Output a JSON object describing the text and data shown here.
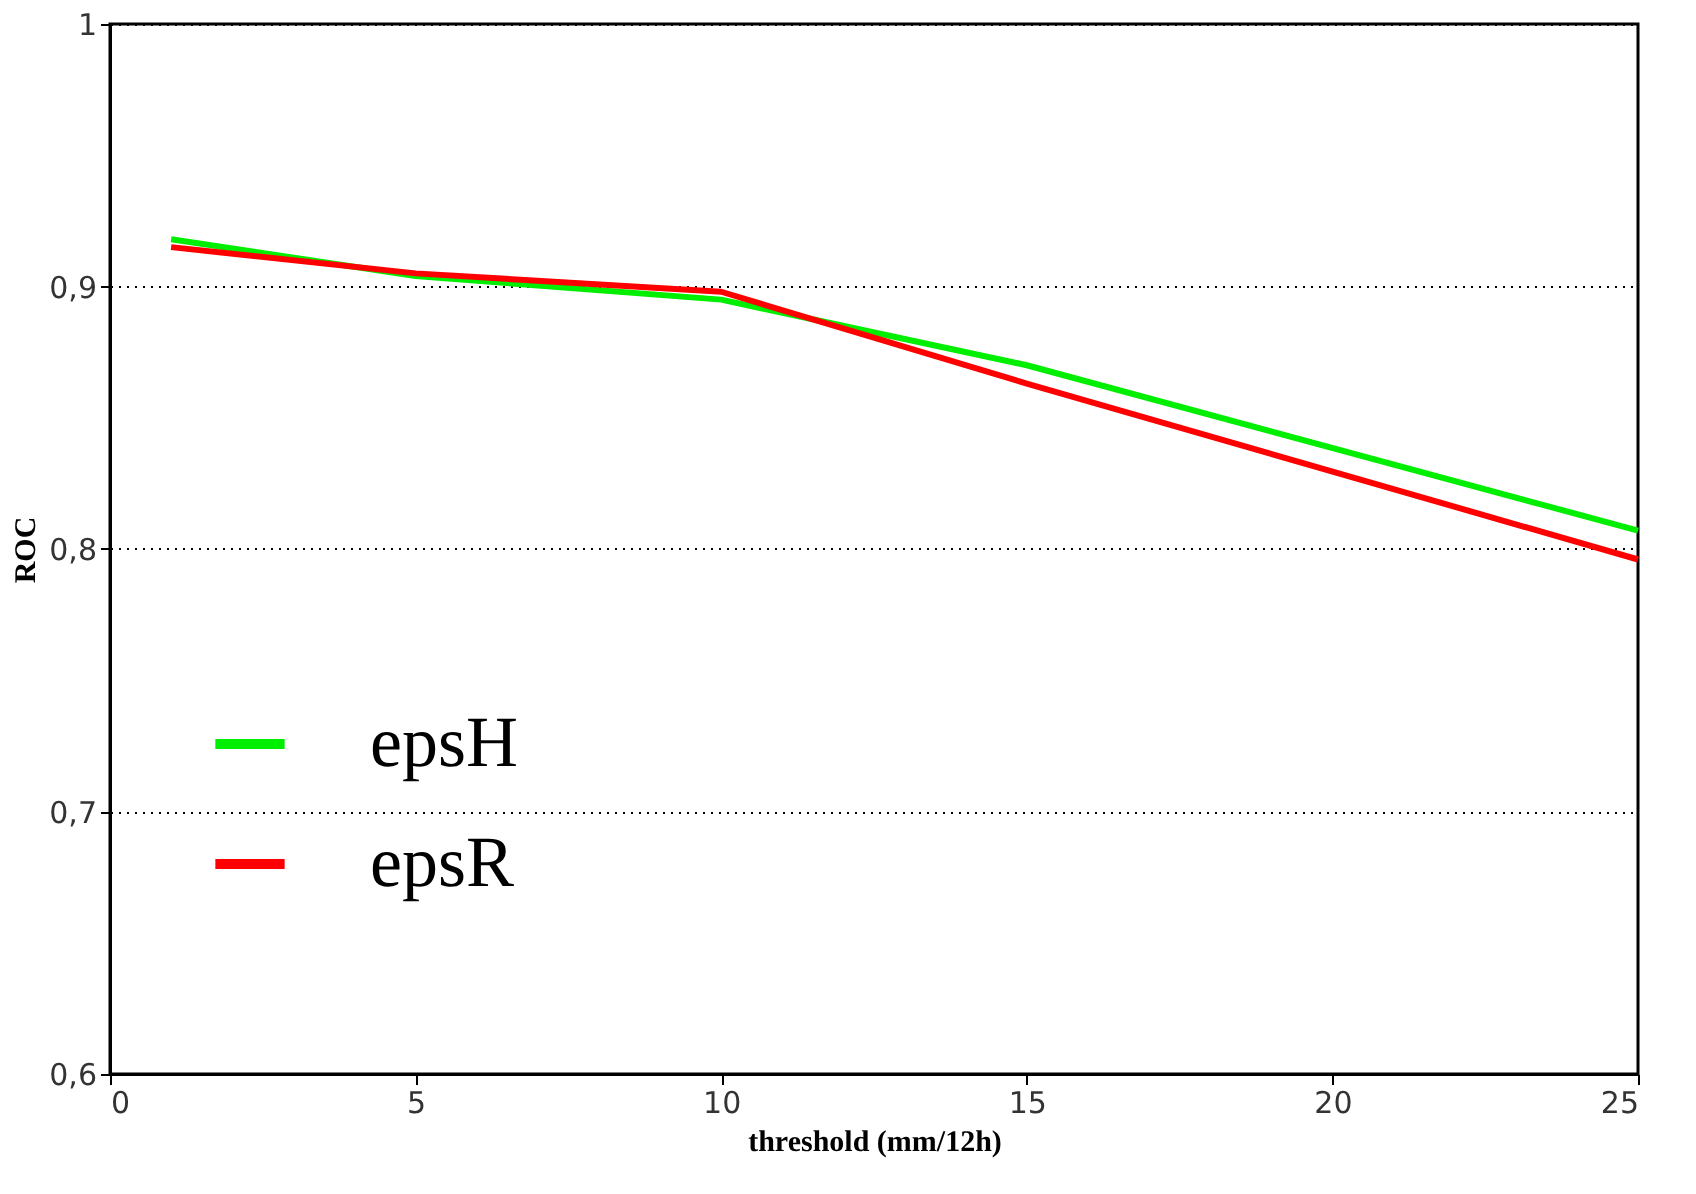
{
  "chart_data": {
    "type": "line",
    "xlabel": "threshold (mm/12h)",
    "ylabel": "ROC",
    "x": [
      1,
      5,
      10,
      15,
      25
    ],
    "series": [
      {
        "name": "epsH",
        "color": "#00ee00",
        "values": [
          0.918,
          0.904,
          0.895,
          0.87,
          0.807
        ]
      },
      {
        "name": "epsR",
        "color": "#ff0000",
        "values": [
          0.915,
          0.905,
          0.898,
          0.863,
          0.796
        ]
      }
    ],
    "xlim": [
      0,
      25
    ],
    "xticks": [
      0,
      5,
      10,
      15,
      20,
      25
    ],
    "ylim": [
      0.6,
      1
    ],
    "yticks": [
      {
        "value": 0.6,
        "label": "0,6"
      },
      {
        "value": 0.7,
        "label": "0,7"
      },
      {
        "value": 0.8,
        "label": "0,8"
      },
      {
        "value": 0.9,
        "label": "0,9"
      },
      {
        "value": 1,
        "label": "1"
      }
    ],
    "grid": "y",
    "legend": "left",
    "marker": "none"
  }
}
